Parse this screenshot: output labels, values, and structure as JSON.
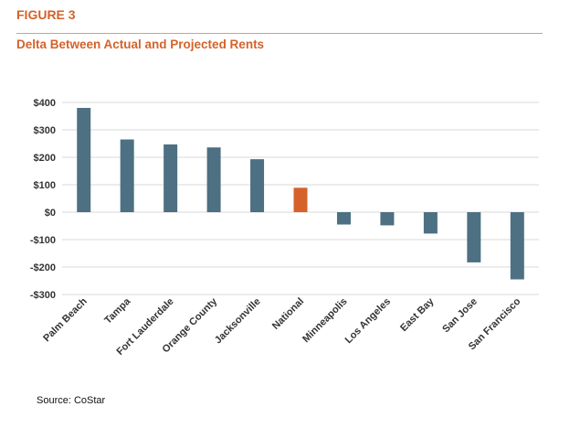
{
  "header": {
    "figure_label": "FIGURE 3",
    "title": "Delta Between Actual and Projected Rents"
  },
  "footer": {
    "source": "Source: CoStar"
  },
  "colors": {
    "accent": "#D4622A",
    "bar_default": "#4D7082",
    "bar_highlight": "#D4622A",
    "gridline": "#D9D9D9",
    "rule": "#D7A17B"
  },
  "chart_data": {
    "type": "bar",
    "title": "Delta Between Actual and Projected Rents",
    "xlabel": "",
    "ylabel": "",
    "categories": [
      "Palm Beach",
      "Tampa",
      "Fort Lauderdale",
      "Orange County",
      "Jacksonville",
      "National",
      "Minneapolis",
      "Los Angeles",
      "East Bay",
      "San Jose",
      "San Francisco"
    ],
    "values": [
      380,
      265,
      247,
      236,
      193,
      89,
      -45,
      -48,
      -78,
      -183,
      -245
    ],
    "highlight_category": "National",
    "ylim": [
      -300,
      400
    ],
    "yticks": [
      400,
      300,
      200,
      100,
      0,
      -100,
      -200,
      -300
    ],
    "ytick_labels": [
      "$400",
      "$300",
      "$200",
      "$100",
      "$0",
      "-$100",
      "-$200",
      "-$300"
    ],
    "grid": true,
    "legend": "none"
  }
}
